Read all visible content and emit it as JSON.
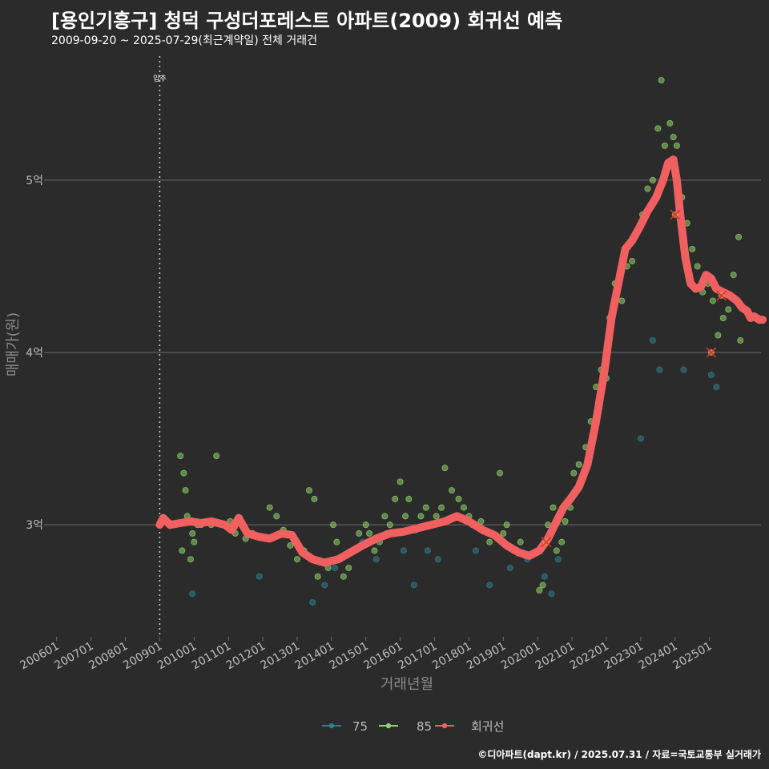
{
  "title": "[용인기흥구] 청덕 구성더포레스트 아파트(2009) 회귀선 예측",
  "subtitle": "2009-09-20 ~ 2025-07-29(최근계약일) 전체 거래건",
  "caption": "©디아파트(dapt.kr) / 2025.07.31 / 자료=국토교통부 실거래가",
  "colors": {
    "background": "#2b2b2b",
    "grid": "#6e6e6e",
    "s75": "#2f7f8f",
    "s85": "#8fd46a",
    "regression": "#f06060",
    "marked": "#e03030"
  },
  "chart_data": {
    "type": "scatter",
    "xlabel": "거래년월",
    "ylabel": "매매가(원)",
    "xlim": [
      2005.75,
      2026.5
    ],
    "ylim": [
      2.35,
      5.72
    ],
    "x_ticks": [
      2006,
      2007,
      2008,
      2009,
      2010,
      2011,
      2012,
      2013,
      2014,
      2015,
      2016,
      2017,
      2018,
      2019,
      2020,
      2021,
      2022,
      2023,
      2024,
      2025
    ],
    "x_tick_labels": [
      "200601",
      "200701",
      "200801",
      "200901",
      "201001",
      "201101",
      "201201",
      "201301",
      "201401",
      "201501",
      "201601",
      "201701",
      "201801",
      "201901",
      "202001",
      "202101",
      "202201",
      "202301",
      "202401",
      "202501"
    ],
    "y_ticks": [
      3,
      4,
      5
    ],
    "y_tick_labels": [
      "3억",
      "4억",
      "5억"
    ],
    "vline": {
      "x": 2009.0,
      "label": "입주"
    },
    "legend": [
      {
        "key": "s75",
        "label": "75"
      },
      {
        "key": "s85",
        "label": "85"
      },
      {
        "key": "regression",
        "label": "회귀선"
      }
    ],
    "series": [
      {
        "name": "75",
        "points": [
          [
            2009.95,
            2.6
          ],
          [
            2011.9,
            2.7
          ],
          [
            2013.45,
            2.55
          ],
          [
            2013.8,
            2.65
          ],
          [
            2014.1,
            2.75
          ],
          [
            2014.9,
            2.9
          ],
          [
            2015.3,
            2.8
          ],
          [
            2015.6,
            2.95
          ],
          [
            2016.1,
            2.85
          ],
          [
            2016.4,
            2.65
          ],
          [
            2016.8,
            2.85
          ],
          [
            2017.1,
            2.8
          ],
          [
            2018.2,
            2.85
          ],
          [
            2018.6,
            2.65
          ],
          [
            2019.2,
            2.75
          ],
          [
            2019.7,
            2.8
          ],
          [
            2020.2,
            2.7
          ],
          [
            2020.4,
            2.6
          ],
          [
            2020.6,
            2.8
          ],
          [
            2023.0,
            3.5
          ],
          [
            2023.35,
            4.07
          ],
          [
            2023.55,
            3.9
          ],
          [
            2024.25,
            3.9
          ],
          [
            2025.05,
            3.87
          ],
          [
            2025.2,
            3.8
          ]
        ]
      },
      {
        "name": "85",
        "points": [
          [
            2009.6,
            3.4
          ],
          [
            2009.7,
            3.3
          ],
          [
            2009.75,
            3.2
          ],
          [
            2009.8,
            3.05
          ],
          [
            2009.65,
            2.85
          ],
          [
            2009.9,
            2.8
          ],
          [
            2009.95,
            2.95
          ],
          [
            2010.0,
            2.9
          ],
          [
            2010.1,
            3.0
          ],
          [
            2010.2,
            3.0
          ],
          [
            2010.4,
            3.02
          ],
          [
            2010.5,
            3.0
          ],
          [
            2010.65,
            3.4
          ],
          [
            2011.05,
            3.02
          ],
          [
            2011.2,
            2.95
          ],
          [
            2011.5,
            2.92
          ],
          [
            2011.7,
            2.95
          ],
          [
            2011.85,
            2.93
          ],
          [
            2012.2,
            3.1
          ],
          [
            2012.4,
            3.05
          ],
          [
            2012.6,
            2.97
          ],
          [
            2012.8,
            2.88
          ],
          [
            2013.0,
            2.8
          ],
          [
            2013.2,
            2.85
          ],
          [
            2013.35,
            3.2
          ],
          [
            2013.5,
            3.15
          ],
          [
            2013.6,
            2.7
          ],
          [
            2013.75,
            2.78
          ],
          [
            2013.9,
            2.75
          ],
          [
            2014.05,
            3.0
          ],
          [
            2014.15,
            2.9
          ],
          [
            2014.25,
            2.8
          ],
          [
            2014.35,
            2.7
          ],
          [
            2014.5,
            2.75
          ],
          [
            2014.65,
            2.85
          ],
          [
            2014.8,
            2.95
          ],
          [
            2015.0,
            3.0
          ],
          [
            2015.1,
            2.95
          ],
          [
            2015.25,
            2.85
          ],
          [
            2015.4,
            2.9
          ],
          [
            2015.55,
            3.05
          ],
          [
            2015.7,
            3.0
          ],
          [
            2015.85,
            3.15
          ],
          [
            2016.0,
            3.25
          ],
          [
            2016.15,
            3.05
          ],
          [
            2016.25,
            3.15
          ],
          [
            2016.45,
            2.97
          ],
          [
            2016.6,
            3.05
          ],
          [
            2016.75,
            3.1
          ],
          [
            2016.9,
            3.0
          ],
          [
            2017.05,
            3.05
          ],
          [
            2017.2,
            3.1
          ],
          [
            2017.3,
            3.33
          ],
          [
            2017.5,
            3.2
          ],
          [
            2017.7,
            3.15
          ],
          [
            2017.85,
            3.1
          ],
          [
            2018.0,
            3.05
          ],
          [
            2018.1,
            3.0
          ],
          [
            2018.35,
            3.02
          ],
          [
            2018.6,
            2.9
          ],
          [
            2018.9,
            3.3
          ],
          [
            2019.0,
            2.95
          ],
          [
            2019.1,
            3.0
          ],
          [
            2019.3,
            2.85
          ],
          [
            2019.5,
            2.9
          ],
          [
            2019.8,
            2.82
          ],
          [
            2020.05,
            2.62
          ],
          [
            2020.15,
            2.65
          ],
          [
            2020.3,
            3.0
          ],
          [
            2020.45,
            3.1
          ],
          [
            2020.55,
            2.85
          ],
          [
            2020.7,
            2.9
          ],
          [
            2020.8,
            3.02
          ],
          [
            2020.95,
            3.1
          ],
          [
            2021.05,
            3.3
          ],
          [
            2021.2,
            3.35
          ],
          [
            2021.4,
            3.45
          ],
          [
            2021.55,
            3.6
          ],
          [
            2021.7,
            3.8
          ],
          [
            2021.85,
            3.9
          ],
          [
            2022.0,
            3.85
          ],
          [
            2022.1,
            4.2
          ],
          [
            2022.25,
            4.4
          ],
          [
            2022.45,
            4.3
          ],
          [
            2022.6,
            4.5
          ],
          [
            2022.75,
            4.53
          ],
          [
            2022.9,
            4.7
          ],
          [
            2023.05,
            4.8
          ],
          [
            2023.2,
            4.95
          ],
          [
            2023.35,
            5.0
          ],
          [
            2023.5,
            5.3
          ],
          [
            2023.6,
            5.58
          ],
          [
            2023.7,
            5.2
          ],
          [
            2023.85,
            5.33
          ],
          [
            2023.95,
            5.25
          ],
          [
            2024.05,
            5.2
          ],
          [
            2024.2,
            4.9
          ],
          [
            2024.35,
            4.75
          ],
          [
            2024.5,
            4.6
          ],
          [
            2024.65,
            4.5
          ],
          [
            2024.8,
            4.35
          ],
          [
            2024.95,
            4.4
          ],
          [
            2025.1,
            4.3
          ],
          [
            2025.25,
            4.1
          ],
          [
            2025.4,
            4.2
          ],
          [
            2025.55,
            4.25
          ],
          [
            2025.7,
            4.45
          ],
          [
            2025.85,
            4.67
          ],
          [
            2025.9,
            4.07
          ]
        ]
      }
    ],
    "marked_points": [
      [
        2020.25,
        2.9
      ],
      [
        2024.0,
        4.8
      ],
      [
        2025.05,
        4.0
      ],
      [
        2025.35,
        4.33
      ]
    ],
    "regression": {
      "name": "회귀선",
      "points": [
        [
          2009.0,
          3.0
        ],
        [
          2009.1,
          3.04
        ],
        [
          2009.3,
          3.0
        ],
        [
          2009.6,
          3.01
        ],
        [
          2009.9,
          3.02
        ],
        [
          2010.2,
          3.01
        ],
        [
          2010.5,
          3.02
        ],
        [
          2010.9,
          3.0
        ],
        [
          2011.1,
          2.97
        ],
        [
          2011.3,
          3.04
        ],
        [
          2011.55,
          2.95
        ],
        [
          2011.9,
          2.93
        ],
        [
          2012.2,
          2.92
        ],
        [
          2012.55,
          2.95
        ],
        [
          2012.85,
          2.94
        ],
        [
          2013.15,
          2.84
        ],
        [
          2013.45,
          2.8
        ],
        [
          2013.8,
          2.78
        ],
        [
          2014.2,
          2.8
        ],
        [
          2014.55,
          2.84
        ],
        [
          2014.9,
          2.88
        ],
        [
          2015.3,
          2.92
        ],
        [
          2015.7,
          2.95
        ],
        [
          2016.1,
          2.96
        ],
        [
          2016.5,
          2.98
        ],
        [
          2016.9,
          3.0
        ],
        [
          2017.3,
          3.02
        ],
        [
          2017.65,
          3.05
        ],
        [
          2018.0,
          3.02
        ],
        [
          2018.4,
          2.97
        ],
        [
          2018.75,
          2.94
        ],
        [
          2019.1,
          2.88
        ],
        [
          2019.45,
          2.84
        ],
        [
          2019.75,
          2.82
        ],
        [
          2020.05,
          2.85
        ],
        [
          2020.3,
          2.92
        ],
        [
          2020.55,
          3.02
        ],
        [
          2020.75,
          3.1
        ],
        [
          2020.95,
          3.15
        ],
        [
          2021.2,
          3.22
        ],
        [
          2021.45,
          3.35
        ],
        [
          2021.7,
          3.6
        ],
        [
          2021.95,
          3.9
        ],
        [
          2022.15,
          4.2
        ],
        [
          2022.4,
          4.45
        ],
        [
          2022.55,
          4.6
        ],
        [
          2022.75,
          4.65
        ],
        [
          2022.95,
          4.72
        ],
        [
          2023.2,
          4.82
        ],
        [
          2023.45,
          4.9
        ],
        [
          2023.65,
          5.0
        ],
        [
          2023.8,
          5.1
        ],
        [
          2023.95,
          5.12
        ],
        [
          2024.05,
          5.0
        ],
        [
          2024.15,
          4.8
        ],
        [
          2024.3,
          4.55
        ],
        [
          2024.45,
          4.4
        ],
        [
          2024.6,
          4.37
        ],
        [
          2024.75,
          4.38
        ],
        [
          2024.9,
          4.45
        ],
        [
          2025.05,
          4.43
        ],
        [
          2025.2,
          4.37
        ],
        [
          2025.4,
          4.35
        ],
        [
          2025.6,
          4.33
        ],
        [
          2025.8,
          4.3
        ],
        [
          2025.95,
          4.26
        ],
        [
          2026.1,
          4.24
        ],
        [
          2026.2,
          4.2
        ],
        [
          2026.3,
          4.21
        ],
        [
          2026.45,
          4.19
        ],
        [
          2026.55,
          4.19
        ]
      ]
    }
  }
}
